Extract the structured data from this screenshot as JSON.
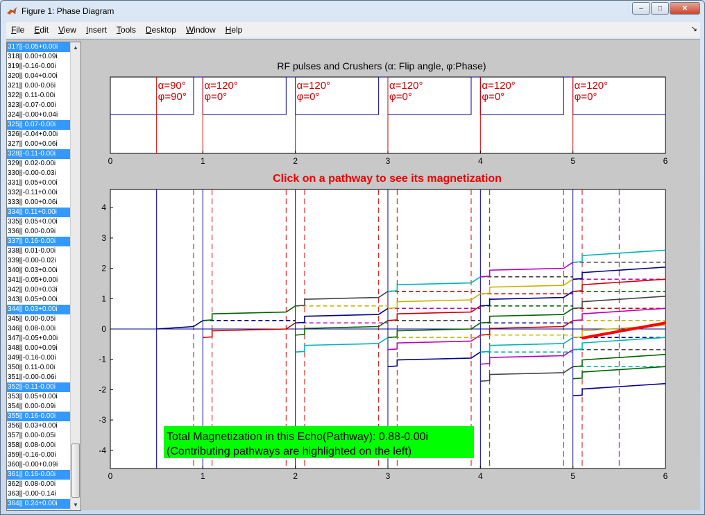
{
  "window": {
    "title": "Figure 1: Phase Diagram",
    "buttons": {
      "minimize": "–",
      "maximize": "□",
      "close": "✕"
    }
  },
  "menubar": {
    "items": [
      "File",
      "Edit",
      "View",
      "Insert",
      "Tools",
      "Desktop",
      "Window",
      "Help"
    ],
    "dock_arrow": "↘"
  },
  "pathway_list": {
    "items": [
      {
        "label": "317||-0.05+0.00i",
        "selected": true
      },
      {
        "label": "318|| 0.00+0.09i",
        "selected": false
      },
      {
        "label": "319||-0.16-0.00i",
        "selected": false
      },
      {
        "label": "320|| 0.04+0.00i",
        "selected": false
      },
      {
        "label": "321|| 0.00-0.06i",
        "selected": false
      },
      {
        "label": "322|| 0.11-0.00i",
        "selected": false
      },
      {
        "label": "323||-0.07-0.00i",
        "selected": false
      },
      {
        "label": "324||-0.00+0.04i",
        "selected": false
      },
      {
        "label": "325|| 0.07-0.00i",
        "selected": true
      },
      {
        "label": "326||-0.04+0.00i",
        "selected": false
      },
      {
        "label": "327|| 0.00+0.06i",
        "selected": false
      },
      {
        "label": "328||-0.11-0.00i",
        "selected": true
      },
      {
        "label": "329|| 0.02-0.00i",
        "selected": false
      },
      {
        "label": "330||-0.00-0.03i",
        "selected": false
      },
      {
        "label": "331|| 0.05+0.00i",
        "selected": false
      },
      {
        "label": "332||-0.11+0.00i",
        "selected": false
      },
      {
        "label": "333|| 0.00+0.06i",
        "selected": false
      },
      {
        "label": "334|| 0.11+0.00i",
        "selected": true
      },
      {
        "label": "335|| 0.05+0.00i",
        "selected": false
      },
      {
        "label": "336|| 0.00-0.09i",
        "selected": false
      },
      {
        "label": "337|| 0.16-0.00i",
        "selected": true
      },
      {
        "label": "338|| 0.01-0.00i",
        "selected": false
      },
      {
        "label": "339||-0.00-0.02i",
        "selected": false
      },
      {
        "label": "340|| 0.03+0.00i",
        "selected": false
      },
      {
        "label": "341||-0.05+0.00i",
        "selected": false
      },
      {
        "label": "342|| 0.00+0.03i",
        "selected": false
      },
      {
        "label": "343|| 0.05+0.00i",
        "selected": false
      },
      {
        "label": "344|| 0.03+0.00i",
        "selected": true
      },
      {
        "label": "345|| 0.00-0.05i",
        "selected": false
      },
      {
        "label": "346|| 0.08-0.00i",
        "selected": false
      },
      {
        "label": "347||-0.05+0.00i",
        "selected": false
      },
      {
        "label": "348|| 0.00+0.09i",
        "selected": false
      },
      {
        "label": "349||-0.16-0.00i",
        "selected": false
      },
      {
        "label": "350|| 0.11-0.00i",
        "selected": false
      },
      {
        "label": "351||-0.00-0.06i",
        "selected": false
      },
      {
        "label": "352||-0.11-0.00i",
        "selected": true
      },
      {
        "label": "353|| 0.05+0.00i",
        "selected": false
      },
      {
        "label": "354|| 0.00-0.09i",
        "selected": false
      },
      {
        "label": "355|| 0.16-0.00i",
        "selected": true
      },
      {
        "label": "356|| 0.03+0.00i",
        "selected": false
      },
      {
        "label": "357|| 0.00-0.05i",
        "selected": false
      },
      {
        "label": "358|| 0.08-0.00i",
        "selected": false
      },
      {
        "label": "359||-0.16-0.00i",
        "selected": false
      },
      {
        "label": "360||-0.00+0.09i",
        "selected": false
      },
      {
        "label": "361|| 0.16-0.00i",
        "selected": true
      },
      {
        "label": "362|| 0.08-0.00i",
        "selected": false
      },
      {
        "label": "363||-0.00-0.14i",
        "selected": false
      },
      {
        "label": "364|| 0.24+0.00i",
        "selected": true
      }
    ],
    "scroll_up": "▲",
    "scroll_down": "▼"
  },
  "colors": {
    "pulse_line": "#cc0000",
    "crusher_line": "#00008b",
    "axis": "#000000",
    "annotation_bg": "#00ff00",
    "prompt_text": "#ee0000",
    "highlight_path": "#ff0000",
    "vertical_magenta": "#cc00cc"
  },
  "chart_data": [
    {
      "type": "line",
      "title": "RF pulses and Crushers (α: Flip angle, φ:Phase)",
      "xlim": [
        0,
        6
      ],
      "xticks": [
        "0",
        "1",
        "2",
        "3",
        "4",
        "5",
        "6"
      ],
      "pulses": [
        {
          "t": 0.5,
          "alpha": "α=90°",
          "phi": "φ=90°"
        },
        {
          "t": 1.0,
          "alpha": "α=120°",
          "phi": "φ=0°"
        },
        {
          "t": 2.0,
          "alpha": "α=120°",
          "phi": "φ=0°"
        },
        {
          "t": 3.0,
          "alpha": "α=120°",
          "phi": "φ=0°"
        },
        {
          "t": 4.0,
          "alpha": "α=120°",
          "phi": "φ=0°"
        },
        {
          "t": 5.0,
          "alpha": "α=120°",
          "phi": "φ=0°"
        }
      ],
      "crushers": [
        [
          0.9,
          1.0
        ],
        [
          1.9,
          2.0
        ],
        [
          2.9,
          3.0
        ],
        [
          3.9,
          4.0
        ],
        [
          4.9,
          5.0
        ]
      ]
    },
    {
      "type": "line",
      "title": "Click on a pathway to see its magnetization",
      "xlim": [
        0,
        6
      ],
      "ylim": [
        -4.6,
        4.6
      ],
      "xticks": [
        "0",
        "1",
        "2",
        "3",
        "4",
        "5",
        "6"
      ],
      "yticks": [
        "4",
        "3",
        "2",
        "1",
        "0",
        "-1",
        "-2",
        "-3",
        "-4"
      ],
      "echo_times": [
        0.9,
        1.1,
        1.9,
        2.1,
        2.9,
        3.1,
        3.9,
        4.1,
        4.9,
        5.1
      ],
      "highlight_time": 5.5,
      "highlight_level": 0.2,
      "annotation_lines": [
        "Total Magnetization in this Echo(Pathway): 0.88-0.00i",
        "(Contributing pathways are highlighted on the left)"
      ]
    }
  ]
}
